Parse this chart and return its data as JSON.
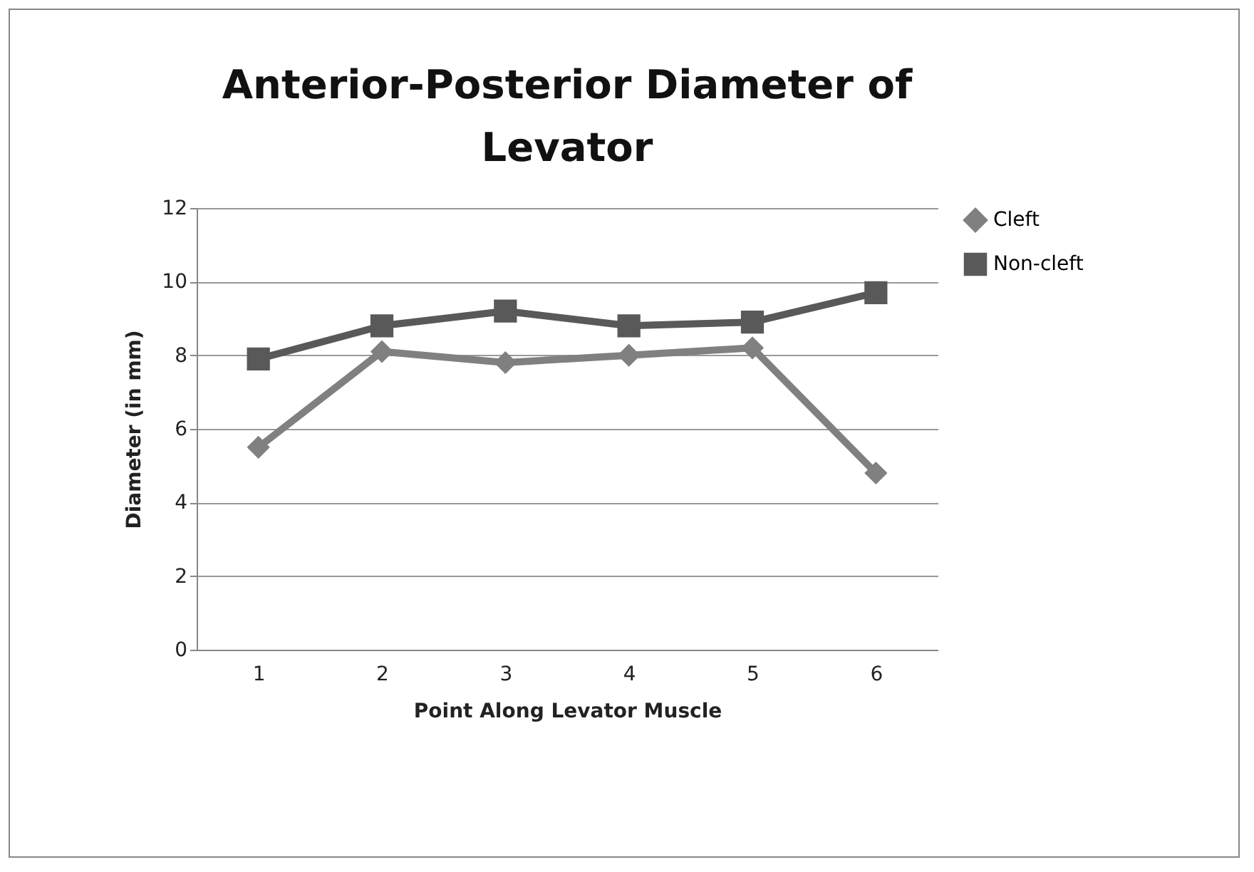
{
  "chart_data": {
    "type": "line",
    "title": "Anterior-Posterior Diameter of Levator",
    "xlabel": "Point Along Levator Muscle",
    "ylabel": "Diameter (in mm)",
    "categories": [
      "1",
      "2",
      "3",
      "4",
      "5",
      "6"
    ],
    "series": [
      {
        "name": "Cleft",
        "color": "#808080",
        "marker": "diamond",
        "values": [
          5.5,
          8.1,
          7.8,
          8.0,
          8.2,
          4.8
        ]
      },
      {
        "name": "Non-cleft",
        "color": "#595959",
        "marker": "square",
        "values": [
          7.9,
          8.8,
          9.2,
          8.8,
          8.9,
          9.7
        ]
      }
    ],
    "ylim": [
      0,
      12
    ],
    "yticks": [
      0,
      2,
      4,
      6,
      8,
      10,
      12
    ],
    "grid": "y",
    "legend": "right"
  }
}
